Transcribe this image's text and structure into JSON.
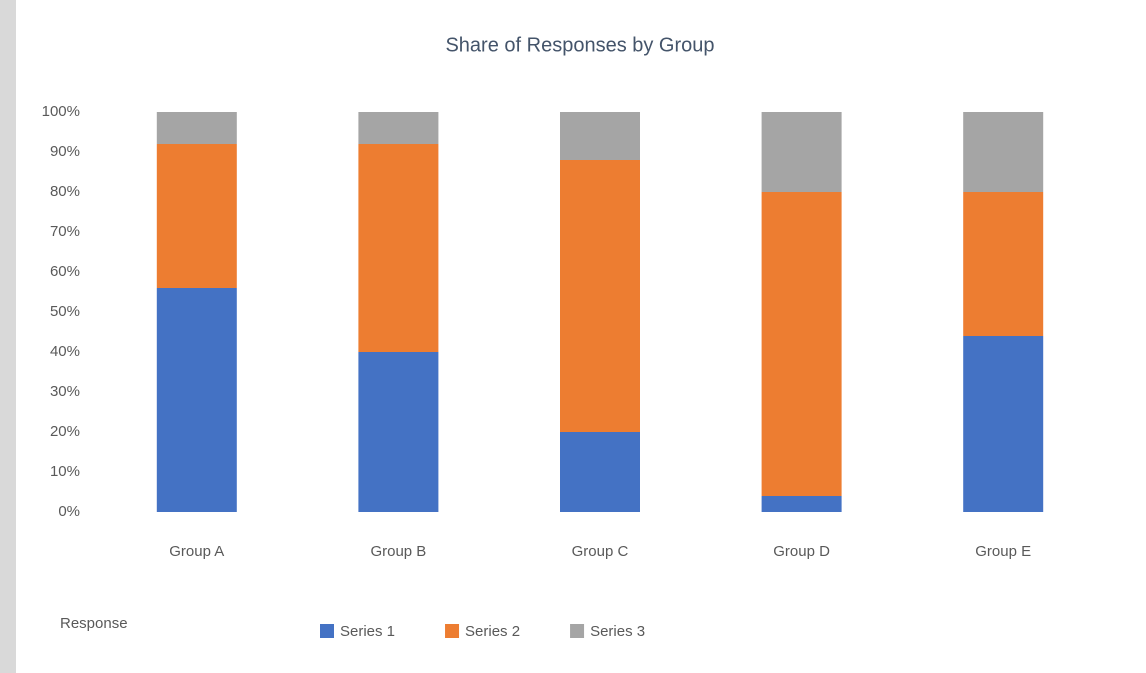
{
  "chart_data": {
    "type": "stacked_bar_100",
    "title": "Share of Responses by Group",
    "categories": [
      "Group A",
      "Group B",
      "Group C",
      "Group D",
      "Group E"
    ],
    "series": [
      {
        "name": "Series 1",
        "color": "#4472c4",
        "values": [
          56,
          40,
          20,
          4,
          44
        ]
      },
      {
        "name": "Series 2",
        "color": "#ed7d31",
        "values": [
          36,
          52,
          68,
          76,
          36
        ]
      },
      {
        "name": "Series 3",
        "color": "#a5a5a5",
        "values": [
          8,
          8,
          12,
          20,
          20
        ]
      }
    ],
    "ylim": [
      0,
      100
    ],
    "yticks": [
      {
        "value": 0,
        "label": "0%"
      },
      {
        "value": 10,
        "label": "10%"
      },
      {
        "value": 20,
        "label": "20%"
      },
      {
        "value": 30,
        "label": "30%"
      },
      {
        "value": 40,
        "label": "40%"
      },
      {
        "value": 50,
        "label": "50%"
      },
      {
        "value": 60,
        "label": "60%"
      },
      {
        "value": 70,
        "label": "70%"
      },
      {
        "value": 80,
        "label": "80%"
      },
      {
        "value": 90,
        "label": "90%"
      },
      {
        "value": 100,
        "label": "100%"
      }
    ],
    "legend_title": "Response",
    "grid": false
  }
}
